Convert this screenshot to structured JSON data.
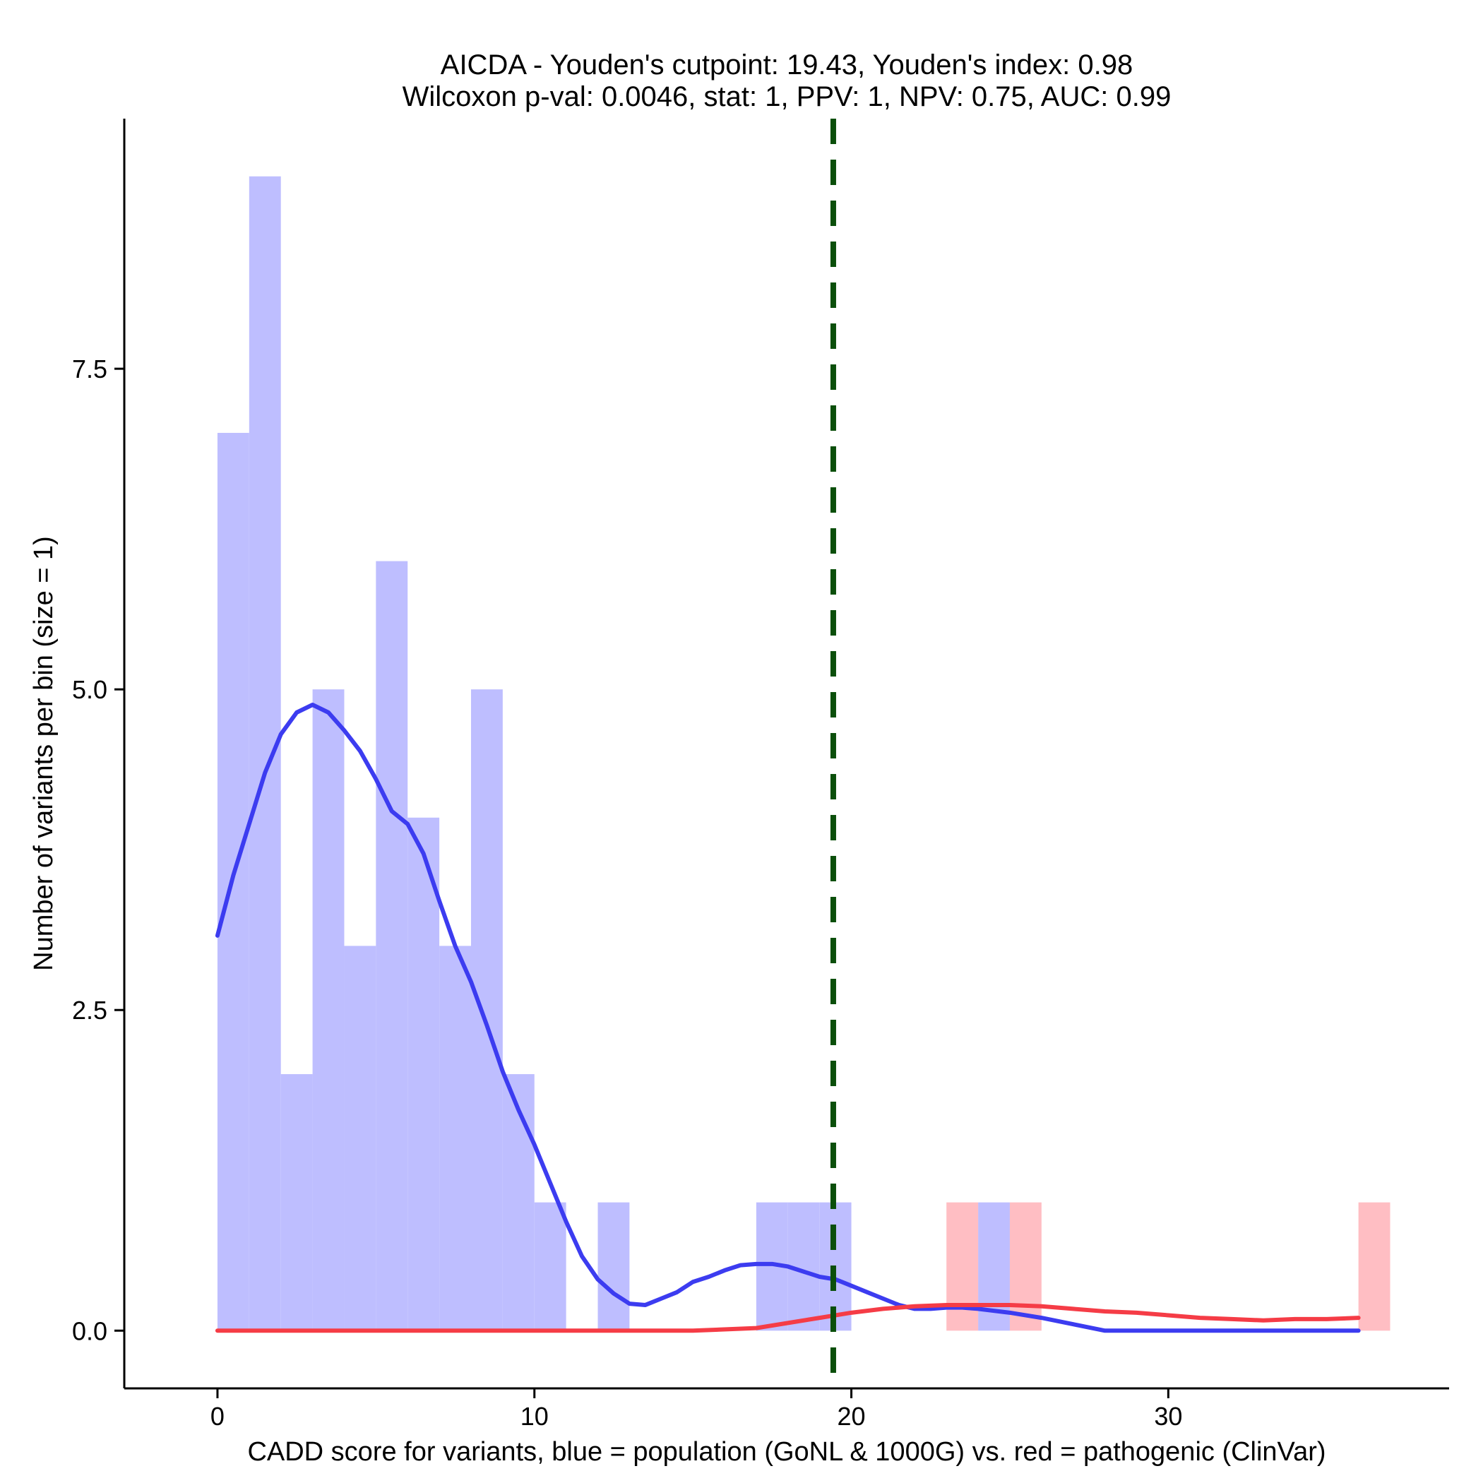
{
  "chart_data": {
    "type": "histogram-density",
    "title_line1": "AICDA - Youden's cutpoint: 19.43, Youden's index: 0.98",
    "title_line2": "Wilcoxon p-val: 0.0046, stat: 1, PPV: 1, NPV: 0.75, AUC: 0.99",
    "xlabel": "CADD score for variants, blue = population (GoNL & 1000G) vs. red = pathogenic (ClinVar)",
    "ylabel": "Number of variants per bin (size = 1)",
    "xlim": [
      -2.94,
      38.86
    ],
    "ylim": [
      -0.45,
      9.45
    ],
    "x_ticks": [
      0,
      10,
      20,
      30
    ],
    "x_tick_labels": [
      "0",
      "10",
      "20",
      "30"
    ],
    "y_ticks": [
      0,
      2.5,
      5,
      7.5
    ],
    "y_tick_labels": [
      "0.0",
      "2.5",
      "5.0",
      "7.5"
    ],
    "cutpoint": 19.43,
    "colors": {
      "population_bar": "#bebeff",
      "pathogenic_bar": "#ffbec3",
      "population_line": "#3c3cf0",
      "pathogenic_line": "#f53c46",
      "cutpoint_line": "#0b4f0b"
    },
    "series": [
      {
        "name": "population (GoNL & 1000G)",
        "bin_width": 1,
        "bins": [
          {
            "start": 0,
            "count": 7
          },
          {
            "start": 1,
            "count": 9
          },
          {
            "start": 2,
            "count": 2
          },
          {
            "start": 3,
            "count": 5
          },
          {
            "start": 4,
            "count": 3
          },
          {
            "start": 5,
            "count": 6
          },
          {
            "start": 6,
            "count": 4
          },
          {
            "start": 7,
            "count": 3
          },
          {
            "start": 8,
            "count": 5
          },
          {
            "start": 9,
            "count": 2
          },
          {
            "start": 10,
            "count": 1
          },
          {
            "start": 12,
            "count": 1
          },
          {
            "start": 17,
            "count": 1
          },
          {
            "start": 18,
            "count": 1
          },
          {
            "start": 19,
            "count": 1
          },
          {
            "start": 24,
            "count": 1
          }
        ],
        "density_x": [
          0,
          0.5,
          1,
          1.5,
          2,
          2.5,
          3,
          3.5,
          4,
          4.5,
          5,
          5.5,
          6,
          6.5,
          7,
          7.5,
          8,
          8.5,
          9,
          9.5,
          10,
          10.5,
          11,
          11.5,
          12,
          12.5,
          13,
          13.5,
          14,
          14.5,
          15,
          15.5,
          16,
          16.5,
          17,
          17.5,
          18,
          18.5,
          19,
          19.5,
          20,
          20.5,
          21,
          21.5,
          22,
          22.5,
          23,
          23.5,
          24,
          25,
          26,
          27,
          28,
          29,
          30,
          36
        ],
        "density_y": [
          3.08,
          3.55,
          3.95,
          4.35,
          4.65,
          4.82,
          4.88,
          4.82,
          4.68,
          4.52,
          4.3,
          4.05,
          3.95,
          3.72,
          3.35,
          3.0,
          2.72,
          2.38,
          2.02,
          1.72,
          1.45,
          1.15,
          0.85,
          0.58,
          0.4,
          0.29,
          0.21,
          0.2,
          0.25,
          0.3,
          0.38,
          0.42,
          0.47,
          0.51,
          0.52,
          0.52,
          0.5,
          0.46,
          0.42,
          0.4,
          0.35,
          0.3,
          0.25,
          0.2,
          0.17,
          0.17,
          0.18,
          0.18,
          0.17,
          0.14,
          0.1,
          0.05,
          0.0,
          0.0,
          0.0,
          0.0
        ]
      },
      {
        "name": "pathogenic (ClinVar)",
        "bin_width": 1,
        "bins": [
          {
            "start": 23,
            "count": 1
          },
          {
            "start": 25,
            "count": 1
          },
          {
            "start": 36,
            "count": 1
          }
        ],
        "density_x": [
          0,
          10,
          15,
          17,
          18,
          19,
          20,
          21,
          22,
          23,
          24,
          25,
          26,
          27,
          28,
          29,
          30,
          31,
          32,
          33,
          34,
          35,
          36
        ],
        "density_y": [
          0.0,
          0.0,
          0.0,
          0.02,
          0.06,
          0.1,
          0.14,
          0.17,
          0.19,
          0.2,
          0.2,
          0.2,
          0.19,
          0.17,
          0.15,
          0.14,
          0.12,
          0.1,
          0.09,
          0.08,
          0.09,
          0.09,
          0.1
        ]
      }
    ]
  }
}
